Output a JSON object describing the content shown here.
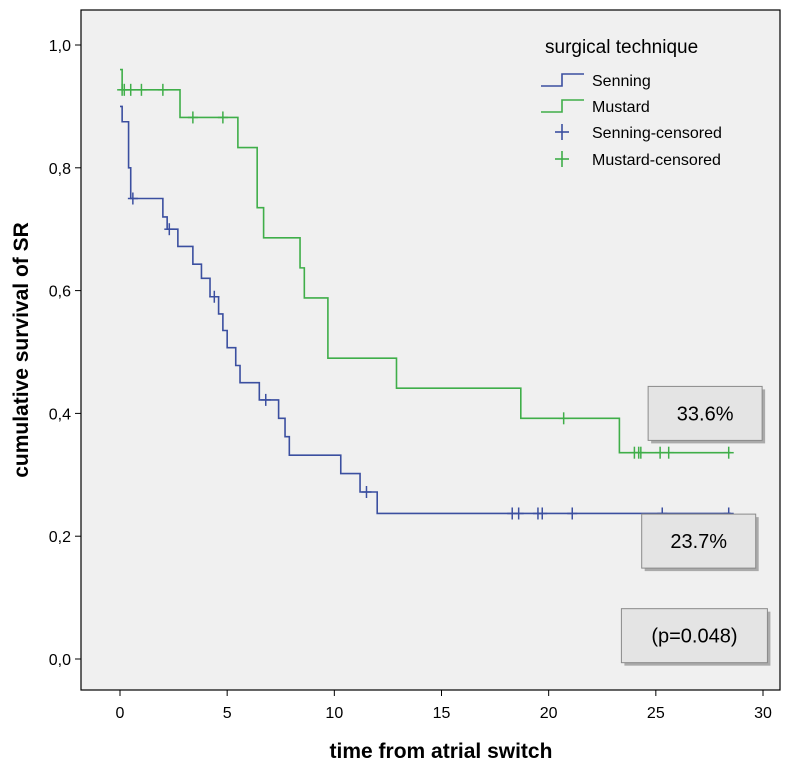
{
  "chart_data": {
    "type": "line",
    "title": "",
    "xlabel": "time from atrial switch",
    "ylabel": "cumulative survival of SR",
    "xlim": [
      0,
      30
    ],
    "ylim": [
      0,
      1.0
    ],
    "x_ticks": [
      "0",
      "5",
      "10",
      "15",
      "20",
      "25",
      "30"
    ],
    "y_ticks": [
      "0,0",
      "0,2",
      "0,4",
      "0,6",
      "0,8",
      "1,0"
    ],
    "grid": false,
    "legend": {
      "title": "surgical technique",
      "placement": "top-right",
      "entries": [
        "Senning",
        "Mustard",
        "Senning-censored",
        "Mustard-censored"
      ]
    },
    "series": [
      {
        "name": "Senning",
        "color": "#3b4fa0",
        "steps": [
          [
            0.0,
            0.9
          ],
          [
            0.1,
            0.875
          ],
          [
            0.4,
            0.8
          ],
          [
            0.5,
            0.75
          ],
          [
            2.0,
            0.72
          ],
          [
            2.2,
            0.7
          ],
          [
            2.7,
            0.672
          ],
          [
            3.4,
            0.643
          ],
          [
            3.8,
            0.62
          ],
          [
            4.2,
            0.59
          ],
          [
            4.6,
            0.562
          ],
          [
            4.8,
            0.535
          ],
          [
            5.0,
            0.507
          ],
          [
            5.4,
            0.478
          ],
          [
            5.6,
            0.45
          ],
          [
            6.5,
            0.422
          ],
          [
            7.4,
            0.392
          ],
          [
            7.7,
            0.362
          ],
          [
            7.9,
            0.332
          ],
          [
            10.3,
            0.302
          ],
          [
            11.2,
            0.272
          ],
          [
            12.0,
            0.237
          ],
          [
            28.5,
            0.237
          ]
        ],
        "censored": [
          [
            0.6,
            0.75
          ],
          [
            2.3,
            0.7
          ],
          [
            4.4,
            0.59
          ],
          [
            6.8,
            0.422
          ],
          [
            11.5,
            0.272
          ],
          [
            18.3,
            0.237
          ],
          [
            18.6,
            0.237
          ],
          [
            19.5,
            0.237
          ],
          [
            19.7,
            0.237
          ],
          [
            21.1,
            0.237
          ],
          [
            25.3,
            0.237
          ],
          [
            28.4,
            0.237
          ]
        ]
      },
      {
        "name": "Mustard",
        "color": "#3fae49",
        "steps": [
          [
            0.0,
            0.96
          ],
          [
            0.1,
            0.927
          ],
          [
            2.8,
            0.882
          ],
          [
            5.5,
            0.833
          ],
          [
            6.4,
            0.735
          ],
          [
            6.7,
            0.686
          ],
          [
            8.4,
            0.637
          ],
          [
            8.6,
            0.588
          ],
          [
            9.7,
            0.49
          ],
          [
            12.9,
            0.441
          ],
          [
            18.7,
            0.392
          ],
          [
            23.3,
            0.336
          ],
          [
            28.5,
            0.336
          ]
        ],
        "censored": [
          [
            0.1,
            0.927
          ],
          [
            0.2,
            0.927
          ],
          [
            0.5,
            0.927
          ],
          [
            1.0,
            0.927
          ],
          [
            2.0,
            0.927
          ],
          [
            3.4,
            0.882
          ],
          [
            4.8,
            0.882
          ],
          [
            20.7,
            0.392
          ],
          [
            24.0,
            0.336
          ],
          [
            24.2,
            0.336
          ],
          [
            24.3,
            0.336
          ],
          [
            25.2,
            0.336
          ],
          [
            25.6,
            0.336
          ],
          [
            28.4,
            0.336
          ]
        ]
      }
    ],
    "annotations": [
      {
        "text": "33.6%",
        "x": 27.3,
        "y": 0.4
      },
      {
        "text": "23.7%",
        "x": 27.0,
        "y": 0.192
      },
      {
        "text": "(p=0.048)",
        "x": 26.8,
        "y": 0.038
      }
    ]
  }
}
